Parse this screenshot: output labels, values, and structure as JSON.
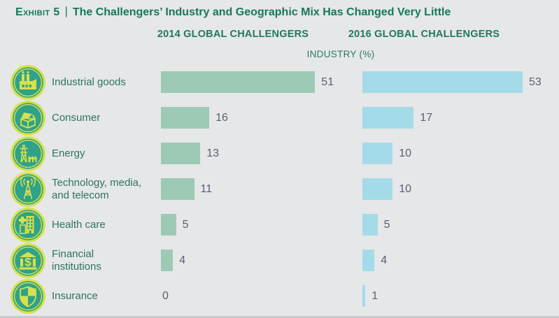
{
  "title": {
    "label": "Exhibit 5",
    "separator": "|",
    "text": "The Challengers’ Industry and Geographic Mix Has Changed Very Little"
  },
  "columns": [
    "2014 GLOBAL CHALLENGERS",
    "2016 GLOBAL CHALLENGERS"
  ],
  "section_label": "INDUSTRY (%)",
  "colors": {
    "background": "#E6E7E8",
    "bottom_rule": "#C9CBCC",
    "title_green": "#15795A",
    "label_green": "#2E7360",
    "value_text": "#5A6073",
    "bar_2014": "#9CCAB5",
    "bar_2016": "#A4DBE8",
    "icon_disc": "#2FA287",
    "icon_accent": "#D8E04E"
  },
  "chart_data": {
    "type": "bar",
    "orientation": "horizontal",
    "value_unit": "%",
    "xlim": [
      0,
      53
    ],
    "grid": false,
    "legend_position": "column-headers-top",
    "categories": [
      "Industrial goods",
      "Consumer",
      "Energy",
      "Technology, media, and telecom",
      "Health care",
      "Financial institutions",
      "Insurance"
    ],
    "categories_display": [
      [
        "Industrial goods"
      ],
      [
        "Consumer"
      ],
      [
        "Energy"
      ],
      [
        "Technology, media,",
        "and telecom"
      ],
      [
        "Health care"
      ],
      [
        "Financial",
        "institutions"
      ],
      [
        "Insurance"
      ]
    ],
    "icons": [
      "factory-icon",
      "package-icon",
      "power-tower-icon",
      "broadcast-tower-icon",
      "hospital-icon",
      "bank-icon",
      "shield-icon"
    ],
    "series": [
      {
        "name": "2014 GLOBAL CHALLENGERS",
        "color": "#9CCAB5",
        "values": [
          51,
          16,
          13,
          11,
          5,
          4,
          0
        ]
      },
      {
        "name": "2016 GLOBAL CHALLENGERS",
        "color": "#A4DBE8",
        "values": [
          53,
          17,
          10,
          10,
          5,
          4,
          1
        ]
      }
    ]
  }
}
